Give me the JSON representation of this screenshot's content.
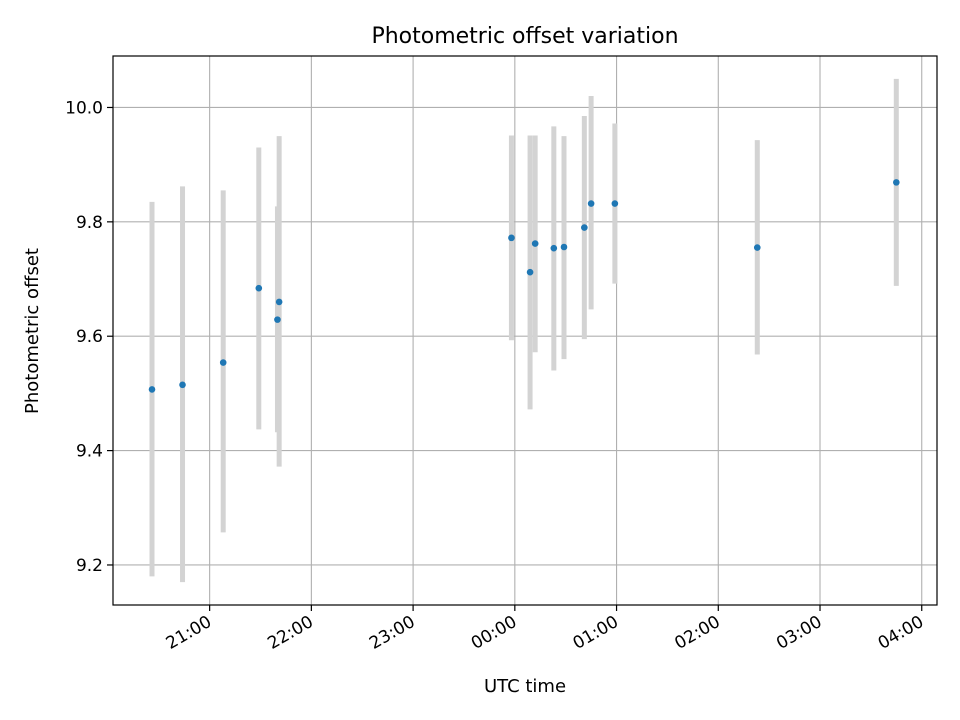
{
  "chart_data": {
    "type": "scatter",
    "title": "Photometric offset variation",
    "xlabel": "UTC time",
    "ylabel": "Photometric offset",
    "x_axis_type": "time",
    "xlim": [
      "20:03",
      "04:09"
    ],
    "ylim": [
      9.13,
      10.09
    ],
    "xticks": [
      "21:00",
      "22:00",
      "23:00",
      "00:00",
      "01:00",
      "02:00",
      "03:00",
      "04:00"
    ],
    "yticks": [
      "9.2",
      "9.4",
      "9.6",
      "9.8",
      "10.0"
    ],
    "grid": true,
    "marker_color": "#1f77b4",
    "errorbar_color": "#d3d3d3",
    "points": [
      {
        "x": "20:26",
        "y": 9.507,
        "ylow": 9.18,
        "yhigh": 9.835
      },
      {
        "x": "20:44",
        "y": 9.515,
        "ylow": 9.17,
        "yhigh": 9.862
      },
      {
        "x": "21:08",
        "y": 9.554,
        "ylow": 9.257,
        "yhigh": 9.855
      },
      {
        "x": "21:29",
        "y": 9.684,
        "ylow": 9.437,
        "yhigh": 9.93
      },
      {
        "x": "21:40",
        "y": 9.629,
        "ylow": 9.432,
        "yhigh": 9.827
      },
      {
        "x": "21:41",
        "y": 9.66,
        "ylow": 9.372,
        "yhigh": 9.95
      },
      {
        "x": "23:58",
        "y": 9.772,
        "ylow": 9.593,
        "yhigh": 9.951
      },
      {
        "x": "00:09",
        "y": 9.712,
        "ylow": 9.472,
        "yhigh": 9.951
      },
      {
        "x": "00:12",
        "y": 9.762,
        "ylow": 9.572,
        "yhigh": 9.951
      },
      {
        "x": "00:23",
        "y": 9.754,
        "ylow": 9.54,
        "yhigh": 9.967
      },
      {
        "x": "00:29",
        "y": 9.756,
        "ylow": 9.56,
        "yhigh": 9.95
      },
      {
        "x": "00:41",
        "y": 9.79,
        "ylow": 9.595,
        "yhigh": 9.985
      },
      {
        "x": "00:45",
        "y": 9.832,
        "ylow": 9.647,
        "yhigh": 10.02
      },
      {
        "x": "00:59",
        "y": 9.832,
        "ylow": 9.692,
        "yhigh": 9.972
      },
      {
        "x": "02:23",
        "y": 9.755,
        "ylow": 9.568,
        "yhigh": 9.943
      },
      {
        "x": "03:45",
        "y": 9.869,
        "ylow": 9.688,
        "yhigh": 10.05
      }
    ]
  }
}
